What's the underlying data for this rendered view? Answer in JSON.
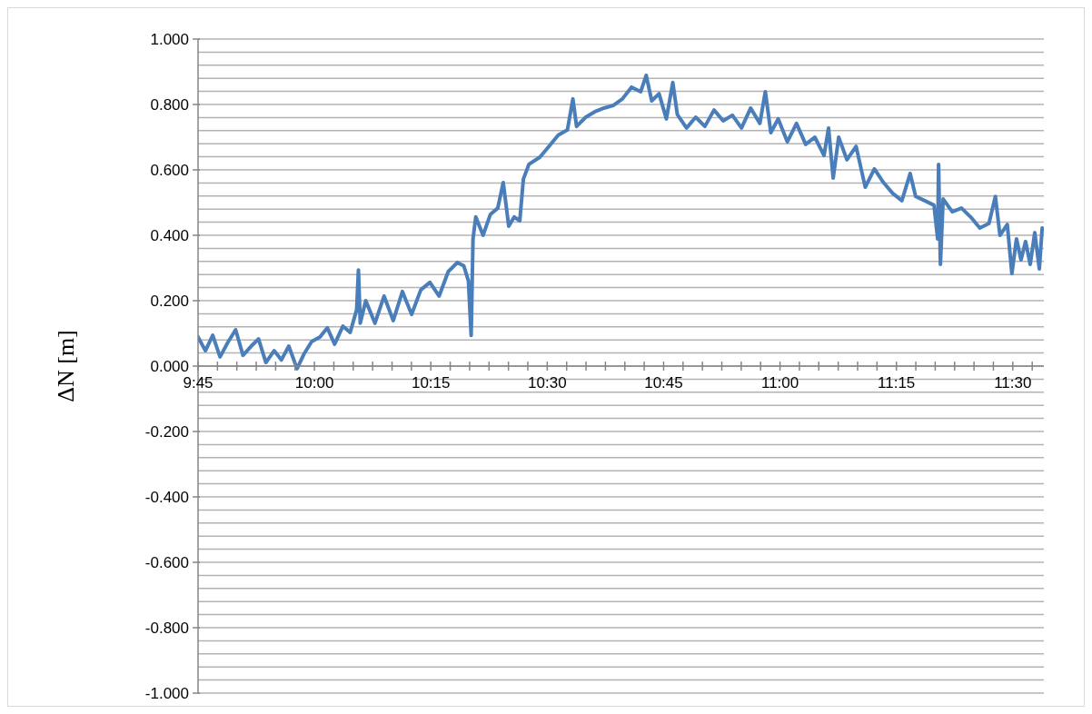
{
  "chart_data": {
    "type": "line",
    "ylabel": "ΔN [m]",
    "color": "#4a7ebb",
    "grid": "y",
    "x": [
      9.75,
      9.7658,
      9.7815,
      9.7972,
      9.815,
      9.8307,
      9.8465,
      9.8642,
      9.8799,
      9.8957,
      9.9134,
      9.9291,
      9.9449,
      9.9626,
      9.9783,
      9.9941,
      10.0118,
      10.0276,
      10.0433,
      10.061,
      10.0768,
      10.0906,
      10.0945,
      10.0984,
      10.1102,
      10.1299,
      10.1496,
      10.1693,
      10.189,
      10.2087,
      10.2284,
      10.248,
      10.2677,
      10.2874,
      10.3071,
      10.3209,
      10.3307,
      10.3366,
      10.3406,
      10.3465,
      10.3622,
      10.378,
      10.3937,
      10.4055,
      10.4173,
      10.4291,
      10.441,
      10.4488,
      10.4606,
      10.4843,
      10.5039,
      10.5236,
      10.5433,
      10.5551,
      10.563,
      10.5827,
      10.6024,
      10.622,
      10.6417,
      10.6614,
      10.6811,
      10.7008,
      10.7126,
      10.7244,
      10.7402,
      10.7559,
      10.7697,
      10.7795,
      10.7992,
      10.8189,
      10.8386,
      10.8583,
      10.878,
      10.8976,
      10.9173,
      10.937,
      10.9567,
      10.9685,
      10.9803,
      10.996,
      11.0157,
      11.0354,
      11.0551,
      11.0748,
      11.0945,
      11.1043,
      11.1142,
      11.126,
      11.1437,
      11.1634,
      11.1831,
      11.2027,
      11.2224,
      11.2421,
      11.2618,
      11.2795,
      11.2913,
      11.3307,
      11.3386,
      11.3406,
      11.3445,
      11.3504,
      11.37,
      11.3898,
      11.4094,
      11.4291,
      11.4488,
      11.4626,
      11.4724,
      11.4882,
      11.498,
      11.5079,
      11.5177,
      11.5275,
      11.5374,
      11.5472,
      11.557,
      11.5631
    ],
    "values": [
      0.089,
      0.047,
      0.094,
      0.028,
      0.075,
      0.111,
      0.033,
      0.061,
      0.083,
      0.011,
      0.047,
      0.019,
      0.061,
      -0.008,
      0.039,
      0.075,
      0.089,
      0.117,
      0.067,
      0.122,
      0.103,
      0.172,
      0.294,
      0.131,
      0.2,
      0.131,
      0.214,
      0.139,
      0.228,
      0.158,
      0.233,
      0.256,
      0.214,
      0.289,
      0.317,
      0.306,
      0.261,
      0.094,
      0.389,
      0.456,
      0.4,
      0.464,
      0.483,
      0.561,
      0.428,
      0.456,
      0.444,
      0.572,
      0.617,
      0.639,
      0.672,
      0.706,
      0.722,
      0.817,
      0.733,
      0.761,
      0.778,
      0.789,
      0.797,
      0.817,
      0.853,
      0.839,
      0.889,
      0.811,
      0.833,
      0.756,
      0.867,
      0.769,
      0.728,
      0.761,
      0.733,
      0.783,
      0.75,
      0.767,
      0.728,
      0.789,
      0.742,
      0.839,
      0.714,
      0.756,
      0.686,
      0.742,
      0.678,
      0.7,
      0.644,
      0.728,
      0.575,
      0.7,
      0.631,
      0.672,
      0.547,
      0.603,
      0.561,
      0.528,
      0.506,
      0.589,
      0.519,
      0.492,
      0.389,
      0.617,
      0.311,
      0.511,
      0.472,
      0.483,
      0.456,
      0.422,
      0.436,
      0.519,
      0.4,
      0.433,
      0.283,
      0.389,
      0.325,
      0.381,
      0.311,
      0.408,
      0.297,
      0.422
    ],
    "xlim": [
      9.75,
      11.5667
    ],
    "xticks": [
      {
        "value": 9.75,
        "label": "9:45"
      },
      {
        "value": 9.7917,
        "label": null
      },
      {
        "value": 9.8333,
        "label": null
      },
      {
        "value": 9.875,
        "label": null
      },
      {
        "value": 9.9167,
        "label": null
      },
      {
        "value": 9.9583,
        "label": null
      },
      {
        "value": 10,
        "label": "10:00"
      },
      {
        "value": 10.0417,
        "label": null
      },
      {
        "value": 10.0833,
        "label": null
      },
      {
        "value": 10.125,
        "label": null
      },
      {
        "value": 10.1667,
        "label": null
      },
      {
        "value": 10.2083,
        "label": null
      },
      {
        "value": 10.25,
        "label": "10:15"
      },
      {
        "value": 10.2917,
        "label": null
      },
      {
        "value": 10.3333,
        "label": null
      },
      {
        "value": 10.375,
        "label": null
      },
      {
        "value": 10.4167,
        "label": null
      },
      {
        "value": 10.4583,
        "label": null
      },
      {
        "value": 10.5,
        "label": "10:30"
      },
      {
        "value": 10.5417,
        "label": null
      },
      {
        "value": 10.5833,
        "label": null
      },
      {
        "value": 10.625,
        "label": null
      },
      {
        "value": 10.6667,
        "label": null
      },
      {
        "value": 10.7083,
        "label": null
      },
      {
        "value": 10.75,
        "label": "10:45"
      },
      {
        "value": 10.7917,
        "label": null
      },
      {
        "value": 10.8333,
        "label": null
      },
      {
        "value": 10.875,
        "label": null
      },
      {
        "value": 10.9167,
        "label": null
      },
      {
        "value": 10.9583,
        "label": null
      },
      {
        "value": 11,
        "label": "11:00"
      },
      {
        "value": 11.0417,
        "label": null
      },
      {
        "value": 11.0833,
        "label": null
      },
      {
        "value": 11.125,
        "label": null
      },
      {
        "value": 11.1667,
        "label": null
      },
      {
        "value": 11.2083,
        "label": null
      },
      {
        "value": 11.25,
        "label": "11:15"
      },
      {
        "value": 11.2917,
        "label": null
      },
      {
        "value": 11.3333,
        "label": null
      },
      {
        "value": 11.375,
        "label": null
      },
      {
        "value": 11.4167,
        "label": null
      },
      {
        "value": 11.4583,
        "label": null
      },
      {
        "value": 11.5,
        "label": "11:30"
      },
      {
        "value": 11.5417,
        "label": null
      }
    ],
    "ylim": [
      -1,
      1
    ],
    "yticks": [
      {
        "value": -1,
        "label": "-1.000"
      },
      {
        "value": -0.96,
        "label": null
      },
      {
        "value": -0.92,
        "label": null
      },
      {
        "value": -0.88,
        "label": null
      },
      {
        "value": -0.84,
        "label": null
      },
      {
        "value": -0.8,
        "label": "-0.800"
      },
      {
        "value": -0.76,
        "label": null
      },
      {
        "value": -0.72,
        "label": null
      },
      {
        "value": -0.68,
        "label": null
      },
      {
        "value": -0.64,
        "label": null
      },
      {
        "value": -0.6,
        "label": "-0.600"
      },
      {
        "value": -0.56,
        "label": null
      },
      {
        "value": -0.52,
        "label": null
      },
      {
        "value": -0.48,
        "label": null
      },
      {
        "value": -0.44,
        "label": null
      },
      {
        "value": -0.4,
        "label": "-0.400"
      },
      {
        "value": -0.36,
        "label": null
      },
      {
        "value": -0.32,
        "label": null
      },
      {
        "value": -0.28,
        "label": null
      },
      {
        "value": -0.24,
        "label": null
      },
      {
        "value": -0.2,
        "label": "-0.200"
      },
      {
        "value": -0.16,
        "label": null
      },
      {
        "value": -0.12,
        "label": null
      },
      {
        "value": -0.08,
        "label": null
      },
      {
        "value": -0.04,
        "label": null
      },
      {
        "value": 0,
        "label": "0.000"
      },
      {
        "value": 0.04,
        "label": null
      },
      {
        "value": 0.08,
        "label": null
      },
      {
        "value": 0.12,
        "label": null
      },
      {
        "value": 0.16,
        "label": null
      },
      {
        "value": 0.2,
        "label": "0.200"
      },
      {
        "value": 0.24,
        "label": null
      },
      {
        "value": 0.28,
        "label": null
      },
      {
        "value": 0.32,
        "label": null
      },
      {
        "value": 0.36,
        "label": null
      },
      {
        "value": 0.4,
        "label": "0.400"
      },
      {
        "value": 0.44,
        "label": null
      },
      {
        "value": 0.48,
        "label": null
      },
      {
        "value": 0.52,
        "label": null
      },
      {
        "value": 0.56,
        "label": null
      },
      {
        "value": 0.6,
        "label": "0.600"
      },
      {
        "value": 0.64,
        "label": null
      },
      {
        "value": 0.68,
        "label": null
      },
      {
        "value": 0.72,
        "label": null
      },
      {
        "value": 0.76,
        "label": null
      },
      {
        "value": 0.8,
        "label": "0.800"
      },
      {
        "value": 0.84,
        "label": null
      },
      {
        "value": 0.88,
        "label": null
      },
      {
        "value": 0.92,
        "label": null
      },
      {
        "value": 0.96,
        "label": null
      },
      {
        "value": 1,
        "label": "1.000"
      }
    ]
  }
}
